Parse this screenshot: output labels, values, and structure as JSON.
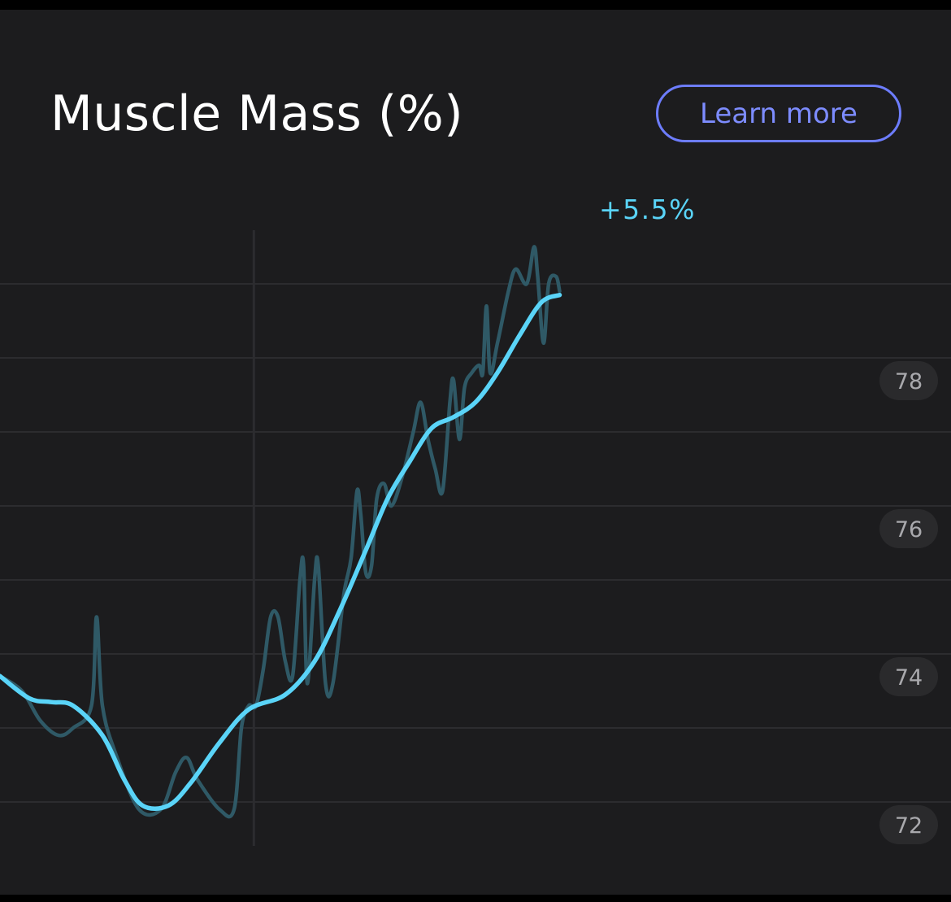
{
  "header": {
    "title": "Muscle Mass (%)",
    "learn_more_label": "Learn more"
  },
  "colors": {
    "card_background": "#1c1c1e",
    "smoothed_line": "#5ad4f8",
    "raw_line": "#2f5966",
    "grid": "#2c2c2f",
    "accent_button": "#6d7dff",
    "tick_label": "#a9a9ad",
    "tick_pill": "#2a2a2c"
  },
  "chart_data": {
    "type": "line",
    "title": "Muscle Mass (%)",
    "change_label": "+5.5%",
    "y_axis": {
      "position": "right",
      "ticks": [
        "72",
        "74",
        "76",
        "78"
      ],
      "tick_values": [
        72,
        74,
        76,
        78
      ],
      "range": [
        71.0,
        80.0
      ],
      "grid": true
    },
    "x_range": [
      0,
      100
    ],
    "vertical_marker_x": 34.7,
    "series": [
      {
        "id": "raw",
        "values": [
          [
            0,
            73.7
          ],
          [
            3,
            73.5
          ],
          [
            5.5,
            73.1
          ],
          [
            8,
            72.9
          ],
          [
            10,
            73.0
          ],
          [
            12.5,
            73.3
          ],
          [
            13.2,
            74.5
          ],
          [
            14,
            73.3
          ],
          [
            16,
            72.6
          ],
          [
            19,
            71.9
          ],
          [
            22,
            71.9
          ],
          [
            24,
            72.4
          ],
          [
            25.5,
            72.6
          ],
          [
            27,
            72.3
          ],
          [
            30,
            71.9
          ],
          [
            32,
            71.9
          ],
          [
            33,
            73.0
          ],
          [
            34,
            73.3
          ],
          [
            35,
            73.3
          ],
          [
            36,
            73.8
          ],
          [
            37,
            74.5
          ],
          [
            38,
            74.5
          ],
          [
            39,
            73.9
          ],
          [
            40,
            73.7
          ],
          [
            41,
            75.0
          ],
          [
            41.5,
            75.2
          ],
          [
            42,
            73.6
          ],
          [
            43,
            75.0
          ],
          [
            43.5,
            75.2
          ],
          [
            44.5,
            73.6
          ],
          [
            45.5,
            73.6
          ],
          [
            47,
            74.8
          ],
          [
            48,
            75.3
          ],
          [
            48.8,
            76.2
          ],
          [
            49.3,
            75.9
          ],
          [
            50,
            75.1
          ],
          [
            50.8,
            75.2
          ],
          [
            51.5,
            76.1
          ],
          [
            52.5,
            76.3
          ],
          [
            53.5,
            76.0
          ],
          [
            55,
            76.4
          ],
          [
            56.5,
            77.0
          ],
          [
            57.5,
            77.4
          ],
          [
            58.5,
            76.9
          ],
          [
            59.5,
            76.5
          ],
          [
            60.5,
            76.2
          ],
          [
            61.5,
            77.4
          ],
          [
            62,
            77.7
          ],
          [
            62.8,
            76.9
          ],
          [
            63.5,
            77.6
          ],
          [
            64.5,
            77.8
          ],
          [
            65.5,
            77.9
          ],
          [
            66,
            77.8
          ],
          [
            66.5,
            78.7
          ],
          [
            67,
            77.8
          ],
          [
            68,
            78.2
          ],
          [
            69.5,
            78.9
          ],
          [
            70.5,
            79.2
          ],
          [
            72,
            79.0
          ],
          [
            73,
            79.5
          ],
          [
            73.5,
            79.1
          ],
          [
            74.3,
            78.2
          ],
          [
            75,
            79.0
          ],
          [
            76,
            79.1
          ],
          [
            76.5,
            78.9
          ]
        ]
      },
      {
        "id": "trend",
        "values": [
          [
            0,
            73.7
          ],
          [
            4,
            73.4
          ],
          [
            7,
            73.35
          ],
          [
            10,
            73.3
          ],
          [
            14,
            72.9
          ],
          [
            17,
            72.3
          ],
          [
            19.5,
            71.95
          ],
          [
            23,
            71.95
          ],
          [
            26,
            72.25
          ],
          [
            30,
            72.8
          ],
          [
            34,
            73.25
          ],
          [
            39,
            73.45
          ],
          [
            43,
            73.9
          ],
          [
            46.5,
            74.6
          ],
          [
            50,
            75.4
          ],
          [
            53,
            76.1
          ],
          [
            56,
            76.6
          ],
          [
            59,
            77.05
          ],
          [
            62,
            77.2
          ],
          [
            65,
            77.4
          ],
          [
            68,
            77.8
          ],
          [
            71,
            78.3
          ],
          [
            74,
            78.75
          ],
          [
            76.5,
            78.85
          ]
        ]
      }
    ]
  }
}
